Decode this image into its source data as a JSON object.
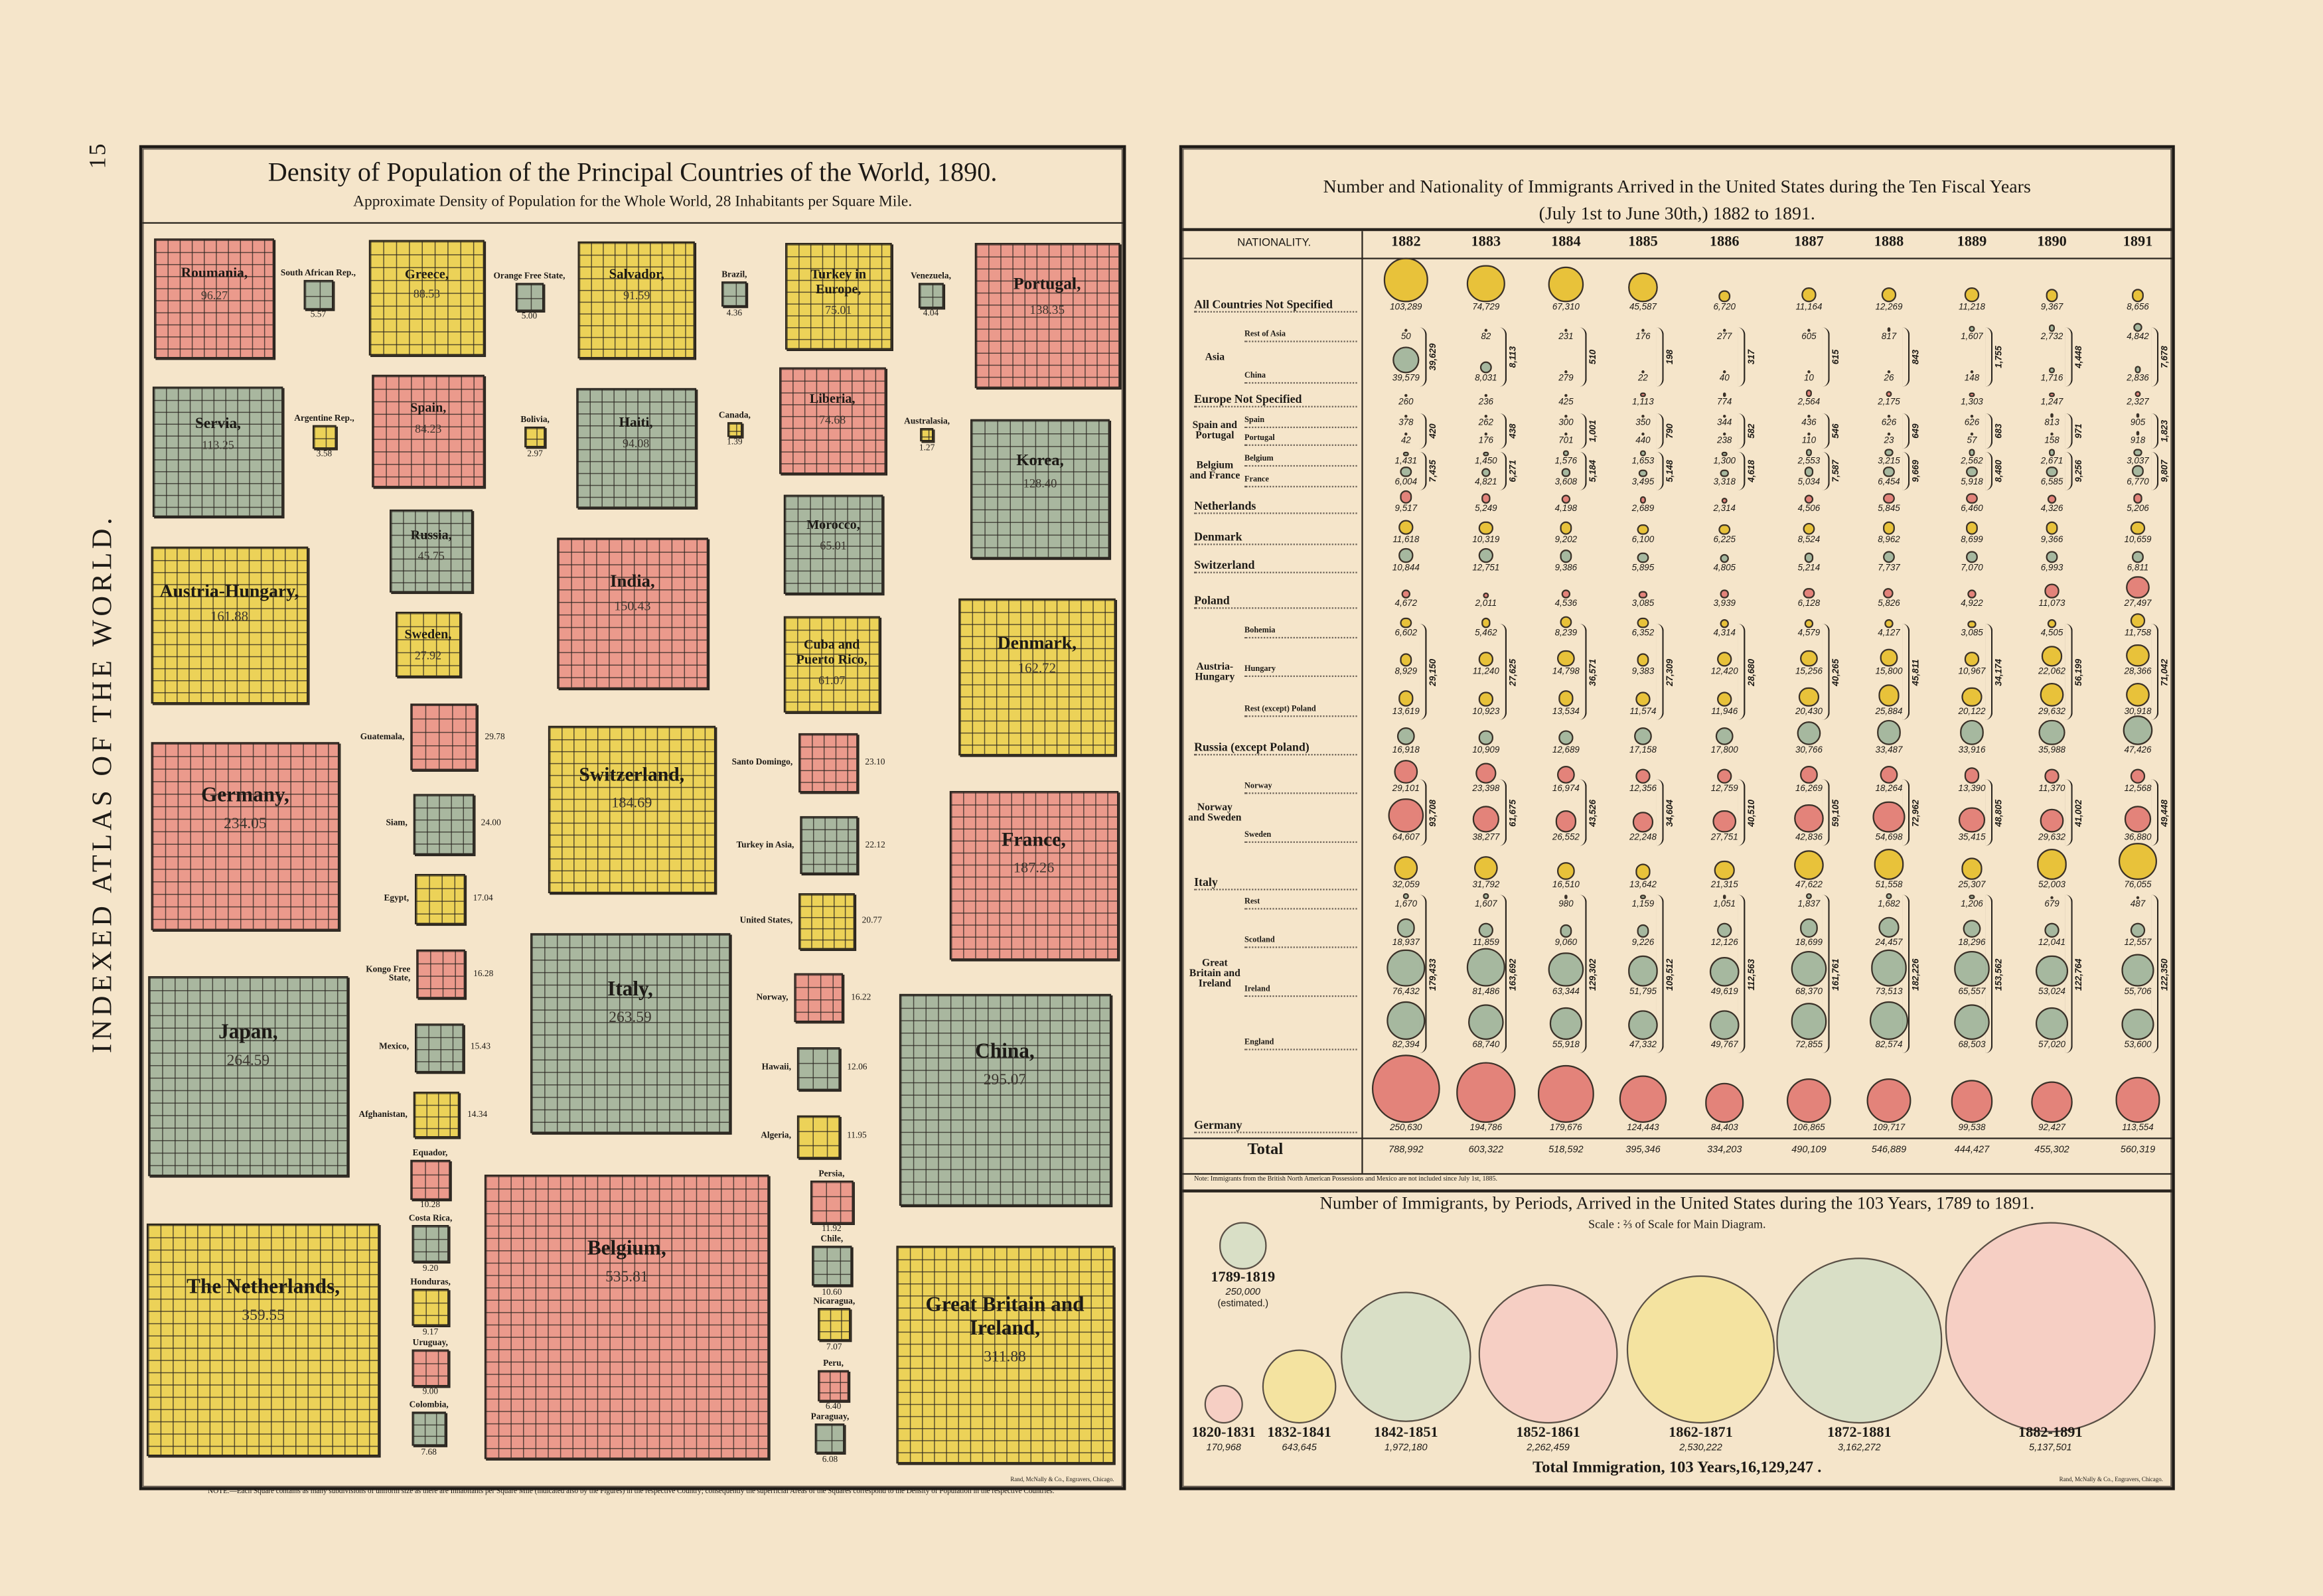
{
  "page_number": "15",
  "atlas_title": "INDEXED ATLAS OF THE WORLD.",
  "colors": {
    "pink": "#eb9a8c",
    "yellow": "#ecd258",
    "green": "#a9b79f",
    "circle_pink": "#e3837a",
    "circle_yellow": "#e8c23a",
    "circle_green": "#a6b89f",
    "pale_pink": "#f6cfc4",
    "pale_yellow": "#f4e3a0",
    "pale_green": "#d9dfc6"
  },
  "left": {
    "title": "Density of Population of the Principal Countries of the World, 1890.",
    "subtitle": "Approximate Density of Population for the Whole World, 28 Inhabitants per Square Mile.",
    "credit": "Rand, McNally & Co., Engravers, Chicago.",
    "note": "NOTE.—Each Square contains as many subdivisions of uniform size as there are Inhabitants per Square Mile (indicated also by the Figures) in the respective Country; consequently the superficial Areas of the Squares correspond to the Density of Population in the respective Countries."
  },
  "right": {
    "title_line1": "Number and Nationality of Immigrants Arrived in the United States during the Ten Fiscal Years",
    "title_line2": "(July 1st to June 30th,) 1882 to 1891.",
    "nationality_header": "NATIONALITY.",
    "total_label": "Total",
    "note": "Note: Immigrants from the British North American Possessions and Mexico are not included since July 1st, 1885.",
    "periods_title": "Number of Immigrants, by Periods, Arrived in the United States during the 103 Years, 1789 to 1891.",
    "periods_scale": "Scale : ⅔ of Scale for Main Diagram.",
    "periods_total": "Total Immigration, 103 Years,16,129,247 .",
    "estimated": "(estimated.)",
    "credit": "Rand, McNally & Co., Engravers, Chicago."
  },
  "chart_data": [
    {
      "type": "proportional-squares",
      "title": "Density of Population of the Principal Countries of the World, 1890.",
      "subtitle": "Approximate Density of Population for the Whole World, 28 Inhabitants per Square Mile.",
      "countries": [
        {
          "name": "Roumania,",
          "value": 96.27,
          "color": "pink"
        },
        {
          "name": "Greece,",
          "value": 88.53,
          "color": "yellow"
        },
        {
          "name": "Salvador,",
          "value": 91.59,
          "color": "yellow"
        },
        {
          "name": "Turkey in Europe,",
          "value": 75.01,
          "color": "yellow"
        },
        {
          "name": "Portugal,",
          "value": 138.35,
          "color": "pink"
        },
        {
          "name": "Servia,",
          "value": 113.25,
          "color": "green"
        },
        {
          "name": "Spain,",
          "value": 84.23,
          "color": "pink"
        },
        {
          "name": "Haiti,",
          "value": 94.08,
          "color": "green"
        },
        {
          "name": "Liberia,",
          "value": 74.68,
          "color": "pink"
        },
        {
          "name": "Korea,",
          "value": 128.4,
          "color": "green"
        },
        {
          "name": "Russia,",
          "value": 45.75,
          "color": "green"
        },
        {
          "name": "Austria-Hungary,",
          "value": 161.88,
          "color": "yellow"
        },
        {
          "name": "India,",
          "value": 150.43,
          "color": "pink"
        },
        {
          "name": "Morocco,",
          "value": 65.01,
          "color": "green"
        },
        {
          "name": "Sweden,",
          "value": 27.92,
          "color": "yellow"
        },
        {
          "name": "Cuba and Puerto Rico,",
          "value": 61.07,
          "color": "yellow"
        },
        {
          "name": "Denmark,",
          "value": 162.72,
          "color": "yellow"
        },
        {
          "name": "Germany,",
          "value": 234.05,
          "color": "pink"
        },
        {
          "name": "Switzerland,",
          "value": 184.69,
          "color": "yellow"
        },
        {
          "name": "France,",
          "value": 187.26,
          "color": "pink"
        },
        {
          "name": "Japan,",
          "value": 264.59,
          "color": "green"
        },
        {
          "name": "Italy,",
          "value": 263.59,
          "color": "green"
        },
        {
          "name": "China,",
          "value": 295.07,
          "color": "green"
        },
        {
          "name": "The Netherlands,",
          "value": 359.55,
          "color": "yellow"
        },
        {
          "name": "Belgium,",
          "value": 535.81,
          "color": "pink"
        },
        {
          "name": "Great Britain and Ireland,",
          "value": 311.88,
          "color": "yellow"
        },
        {
          "name": "South African Rep.,",
          "value": 5.57,
          "color": "green"
        },
        {
          "name": "Orange Free State,",
          "value": 5.0,
          "color": "green"
        },
        {
          "name": "Argentine Rep.,",
          "value": 3.58,
          "color": "yellow"
        },
        {
          "name": "Bolivia,",
          "value": 2.97,
          "color": "yellow"
        },
        {
          "name": "Brazil,",
          "value": 4.36,
          "color": "green"
        },
        {
          "name": "Venezuela,",
          "value": 4.04,
          "color": "green"
        },
        {
          "name": "Canada,",
          "value": 1.39,
          "color": "yellow"
        },
        {
          "name": "Australasia,",
          "value": 1.27,
          "color": "yellow"
        },
        {
          "name": "Guatemala,",
          "value": 29.78,
          "color": "pink"
        },
        {
          "name": "Siam,",
          "value": 24.0,
          "color": "green"
        },
        {
          "name": "Egypt,",
          "value": 17.04,
          "color": "yellow"
        },
        {
          "name": "Kongo Free State,",
          "value": 16.28,
          "color": "pink"
        },
        {
          "name": "Mexico,",
          "value": 15.43,
          "color": "green"
        },
        {
          "name": "Afghanistan,",
          "value": 14.34,
          "color": "yellow"
        },
        {
          "name": "Santo Domingo,",
          "value": 23.1,
          "color": "pink"
        },
        {
          "name": "Turkey in Asia,",
          "value": 22.12,
          "color": "green"
        },
        {
          "name": "United States,",
          "value": 20.77,
          "color": "yellow"
        },
        {
          "name": "Norway,",
          "value": 16.22,
          "color": "pink"
        },
        {
          "name": "Hawaii,",
          "value": 12.06,
          "color": "green"
        },
        {
          "name": "Algeria,",
          "value": 11.95,
          "color": "yellow"
        },
        {
          "name": "Equador,",
          "value": 10.28,
          "color": "pink"
        },
        {
          "name": "Costa Rica,",
          "value": 9.2,
          "color": "green"
        },
        {
          "name": "Honduras,",
          "value": 9.17,
          "color": "yellow"
        },
        {
          "name": "Uruguay,",
          "value": 9.0,
          "color": "pink"
        },
        {
          "name": "Colombia,",
          "value": 7.68,
          "color": "green"
        },
        {
          "name": "Persia,",
          "value": 11.92,
          "color": "pink"
        },
        {
          "name": "Chile,",
          "value": 10.6,
          "color": "green"
        },
        {
          "name": "Nicaragua,",
          "value": 7.07,
          "color": "yellow"
        },
        {
          "name": "Peru,",
          "value": 6.4,
          "color": "pink"
        },
        {
          "name": "Paraguay,",
          "value": 6.08,
          "color": "green"
        }
      ]
    },
    {
      "type": "proportional-circles-table",
      "title": "Number and Nationality of Immigrants Arrived in the United States during the Ten Fiscal Years (July 1st to June 30th,) 1882 to 1891.",
      "years": [
        "1882",
        "1883",
        "1884",
        "1885",
        "1886",
        "1887",
        "1888",
        "1889",
        "1890",
        "1891"
      ],
      "rows": [
        {
          "label": "All Countries Not Specified",
          "color": "yellow",
          "values": [
            103289,
            74729,
            67310,
            45587,
            6720,
            11164,
            12269,
            11218,
            9367,
            8656
          ]
        },
        {
          "label": "Rest of Asia",
          "group": "Asia",
          "color": "green",
          "values": [
            50,
            82,
            231,
            176,
            277,
            605,
            817,
            1607,
            2732,
            4842
          ]
        },
        {
          "label": "China",
          "group": "Asia",
          "color": "green",
          "values": [
            39579,
            8031,
            279,
            22,
            40,
            10,
            26,
            148,
            1716,
            2836
          ]
        },
        {
          "label": "Europe Not Specified",
          "color": "pink",
          "values": [
            260,
            236,
            425,
            1113,
            774,
            2564,
            2175,
            1303,
            1247,
            2327
          ]
        },
        {
          "label": "Spain",
          "group": "Spain and Portugal",
          "color": "yellow",
          "values": [
            378,
            262,
            300,
            350,
            344,
            436,
            626,
            626,
            813,
            905
          ]
        },
        {
          "label": "Portugal",
          "group": "Spain and Portugal",
          "color": "yellow",
          "values": [
            42,
            176,
            701,
            440,
            238,
            110,
            23,
            57,
            158,
            918
          ]
        },
        {
          "label": "Belgium",
          "group": "Belgium and France",
          "color": "green",
          "values": [
            1431,
            1450,
            1576,
            1653,
            1300,
            2553,
            3215,
            2562,
            2671,
            3037
          ]
        },
        {
          "label": "France",
          "group": "Belgium and France",
          "color": "green",
          "values": [
            6004,
            4821,
            3608,
            3495,
            3318,
            5034,
            6454,
            5918,
            6585,
            6770
          ]
        },
        {
          "label": "Netherlands",
          "color": "pink",
          "values": [
            9517,
            5249,
            4198,
            2689,
            2314,
            4506,
            5845,
            6460,
            4326,
            5206
          ]
        },
        {
          "label": "Denmark",
          "color": "yellow",
          "values": [
            11618,
            10319,
            9202,
            6100,
            6225,
            8524,
            8962,
            8699,
            9366,
            10659
          ]
        },
        {
          "label": "Switzerland",
          "color": "green",
          "values": [
            10844,
            12751,
            9386,
            5895,
            4805,
            5214,
            7737,
            7070,
            6993,
            6811
          ]
        },
        {
          "label": "Poland",
          "color": "pink",
          "values": [
            4672,
            2011,
            4536,
            3085,
            3939,
            6128,
            5826,
            4922,
            11073,
            27497
          ]
        },
        {
          "label": "Bohemia",
          "group": "Austria-Hungary",
          "color": "yellow",
          "values": [
            6602,
            5462,
            8239,
            6352,
            4314,
            4579,
            4127,
            3085,
            4505,
            11758
          ]
        },
        {
          "label": "Hungary",
          "group": "Austria-Hungary",
          "color": "yellow",
          "values": [
            8929,
            11240,
            14798,
            9383,
            12420,
            15256,
            15800,
            10967,
            22062,
            28366
          ]
        },
        {
          "label": "Rest (except) Poland",
          "group": "Austria-Hungary",
          "color": "yellow",
          "values": [
            13619,
            10923,
            13534,
            11574,
            11946,
            20430,
            25884,
            20122,
            29632,
            30918
          ]
        },
        {
          "label": "Russia (except Poland)",
          "color": "green",
          "values": [
            16918,
            10909,
            12689,
            17158,
            17800,
            30766,
            33487,
            33916,
            35988,
            47426
          ]
        },
        {
          "label": "Norway",
          "group": "Norway and Sweden",
          "color": "pink",
          "values": [
            29101,
            23398,
            16974,
            12356,
            12759,
            16269,
            18264,
            13390,
            11370,
            12568
          ]
        },
        {
          "label": "Sweden",
          "group": "Norway and Sweden",
          "color": "pink",
          "values": [
            64607,
            38277,
            26552,
            22248,
            27751,
            42836,
            54698,
            35415,
            29632,
            36880
          ]
        },
        {
          "label": "Italy",
          "color": "yellow",
          "values": [
            32059,
            31792,
            16510,
            13642,
            21315,
            47622,
            51558,
            25307,
            52003,
            76055
          ]
        },
        {
          "label": "Rest",
          "group": "Great Britain and Ireland",
          "color": "green",
          "values": [
            1670,
            1607,
            980,
            1159,
            1051,
            1837,
            1682,
            1206,
            679,
            487
          ]
        },
        {
          "label": "Scotland",
          "group": "Great Britain and Ireland",
          "color": "green",
          "values": [
            18937,
            11859,
            9060,
            9226,
            12126,
            18699,
            24457,
            18296,
            12041,
            12557
          ]
        },
        {
          "label": "Ireland",
          "group": "Great Britain and Ireland",
          "color": "green",
          "values": [
            76432,
            81486,
            63344,
            51795,
            49619,
            68370,
            73513,
            65557,
            53024,
            55706
          ]
        },
        {
          "label": "England",
          "group": "Great Britain and Ireland",
          "color": "green",
          "values": [
            82394,
            68740,
            55918,
            47332,
            49767,
            72855,
            82574,
            68503,
            57020,
            53600
          ]
        },
        {
          "label": "Germany",
          "color": "pink",
          "values": [
            250630,
            194786,
            179676,
            124443,
            84403,
            106865,
            109717,
            99538,
            92427,
            113554
          ]
        }
      ],
      "groups": [
        {
          "label": "Asia",
          "totals": [
            39629,
            8113,
            510,
            198,
            317,
            615,
            843,
            1755,
            4448,
            7678
          ]
        },
        {
          "label": "Spain and Portugal",
          "totals": [
            420,
            438,
            1001,
            790,
            582,
            546,
            649,
            683,
            971,
            1823
          ]
        },
        {
          "label": "Belgium and France",
          "totals": [
            7435,
            6271,
            5184,
            5148,
            4618,
            7587,
            9669,
            8480,
            9256,
            9807
          ]
        },
        {
          "label": "Austria-Hungary",
          "totals": [
            29150,
            27625,
            36571,
            27309,
            28680,
            40265,
            45811,
            34174,
            56199,
            71042
          ]
        },
        {
          "label": "Norway and Sweden",
          "totals": [
            93708,
            61675,
            43526,
            34604,
            40510,
            59105,
            72962,
            48805,
            41002,
            49448
          ]
        },
        {
          "label": "Great Britain and Ireland",
          "totals": [
            179433,
            163692,
            129302,
            109512,
            112563,
            161761,
            182226,
            153562,
            122764,
            122350
          ]
        }
      ],
      "totals": [
        788992,
        603322,
        518592,
        395346,
        334203,
        490109,
        546889,
        444427,
        455302,
        560319
      ]
    },
    {
      "type": "proportional-circles",
      "title": "Number of Immigrants, by Periods, Arrived in the United States during the 103 Years, 1789 to 1891.",
      "periods": [
        {
          "label": "1789-1819",
          "value": 250000,
          "color": "pale_green"
        },
        {
          "label": "1820-1831",
          "value": 170968,
          "color": "pale_pink"
        },
        {
          "label": "1832-1841",
          "value": 643645,
          "color": "pale_yellow"
        },
        {
          "label": "1842-1851",
          "value": 1972180,
          "color": "pale_green"
        },
        {
          "label": "1852-1861",
          "value": 2262459,
          "color": "pale_pink"
        },
        {
          "label": "1862-1871",
          "value": 2530222,
          "color": "pale_yellow"
        },
        {
          "label": "1872-1881",
          "value": 3162272,
          "color": "pale_green"
        },
        {
          "label": "1882-1891",
          "value": 5137501,
          "color": "pale_pink"
        }
      ],
      "total": 16129247
    }
  ]
}
